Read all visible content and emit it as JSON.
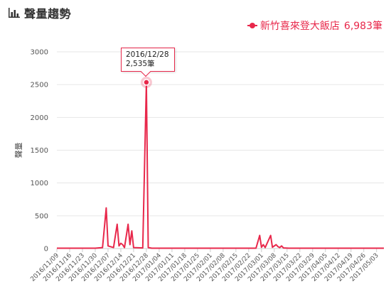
{
  "header": {
    "title": "聲量趨勢",
    "icon": "bar-chart-icon"
  },
  "legend": {
    "name": "新竹喜來登大飯店",
    "count": "6,983筆",
    "color": "#e8284b"
  },
  "tooltip": {
    "date": "2016/12/28",
    "value": "2,535筆"
  },
  "chart_data": {
    "type": "line",
    "ylabel": "聲量",
    "ylim": [
      0,
      3000
    ],
    "yticks": [
      0,
      500,
      1000,
      1500,
      2000,
      2500,
      3000
    ],
    "x_start": "2016/11/09",
    "x_end": "2017/05/07",
    "xticks": [
      "2016/11/09",
      "2016/11/16",
      "2016/11/23",
      "2016/11/30",
      "2016/12/07",
      "2016/12/14",
      "2016/12/21",
      "2016/12/28",
      "2017/01/04",
      "2017/01/11",
      "2017/01/18",
      "2017/01/25",
      "2017/02/01",
      "2017/02/08",
      "2017/02/15",
      "2017/02/22",
      "2017/03/01",
      "2017/03/08",
      "2017/03/15",
      "2017/03/22",
      "2017/03/29",
      "2017/04/05",
      "2017/04/12",
      "2017/04/19",
      "2017/04/26",
      "2017/05/03"
    ],
    "grid": true,
    "series": [
      {
        "name": "新竹喜來登大飯店",
        "color": "#e8284b",
        "points": [
          [
            "2016/11/09",
            5
          ],
          [
            "2016/11/30",
            5
          ],
          [
            "2016/12/04",
            15
          ],
          [
            "2016/12/06",
            620
          ],
          [
            "2016/12/07",
            40
          ],
          [
            "2016/12/10",
            15
          ],
          [
            "2016/12/12",
            370
          ],
          [
            "2016/12/13",
            40
          ],
          [
            "2016/12/14",
            80
          ],
          [
            "2016/12/15",
            60
          ],
          [
            "2016/12/16",
            15
          ],
          [
            "2016/12/18",
            370
          ],
          [
            "2016/12/19",
            60
          ],
          [
            "2016/12/20",
            270
          ],
          [
            "2016/12/21",
            15
          ],
          [
            "2016/12/26",
            10
          ],
          [
            "2016/12/28",
            2535
          ],
          [
            "2016/12/29",
            15
          ],
          [
            "2016/12/31",
            5
          ],
          [
            "2017/02/26",
            5
          ],
          [
            "2017/02/28",
            200
          ],
          [
            "2017/03/01",
            20
          ],
          [
            "2017/03/02",
            60
          ],
          [
            "2017/03/03",
            15
          ],
          [
            "2017/03/06",
            200
          ],
          [
            "2017/03/07",
            20
          ],
          [
            "2017/03/09",
            60
          ],
          [
            "2017/03/10",
            30
          ],
          [
            "2017/03/11",
            15
          ],
          [
            "2017/03/12",
            40
          ],
          [
            "2017/03/13",
            10
          ],
          [
            "2017/03/16",
            5
          ],
          [
            "2017/05/07",
            5
          ]
        ]
      }
    ],
    "highlight": {
      "date": "2016/12/28",
      "value": 2535
    }
  }
}
